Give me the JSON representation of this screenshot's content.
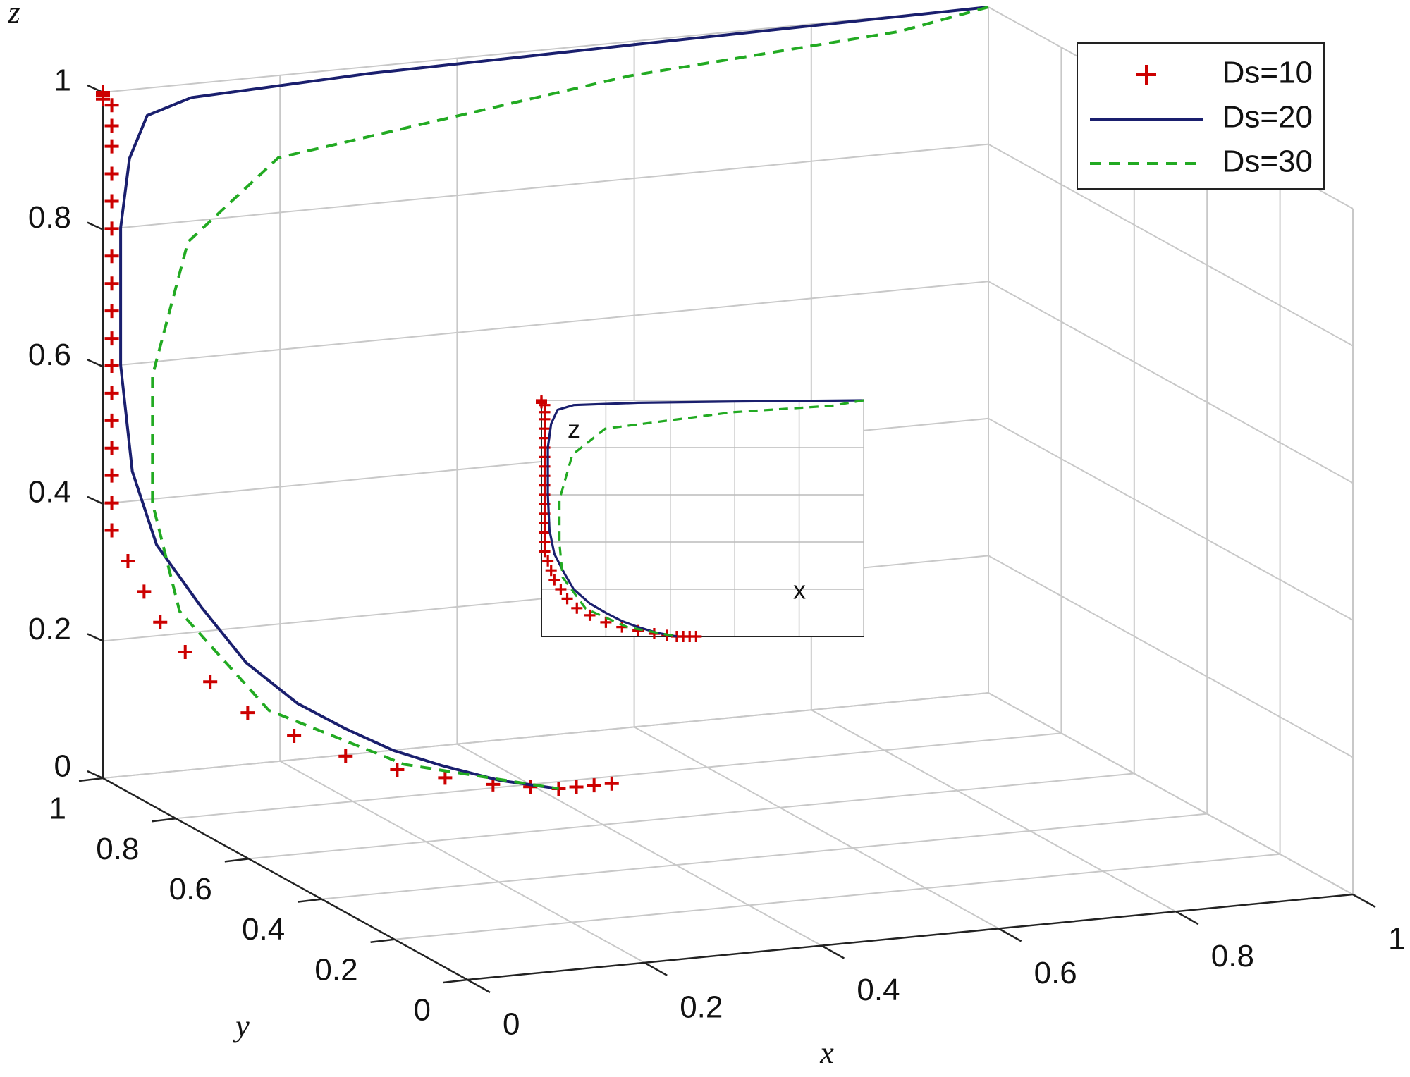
{
  "chart_data": {
    "type": "line3d",
    "xlabel": "x",
    "ylabel": "y",
    "zlabel": "z",
    "xlim": [
      0,
      1
    ],
    "ylim": [
      0,
      1
    ],
    "zlim": [
      0,
      1
    ],
    "xticks": [
      0,
      0.2,
      0.4,
      0.6,
      0.8,
      1
    ],
    "yticks": [
      0,
      0.2,
      0.4,
      0.6,
      0.8,
      1
    ],
    "zticks": [
      0,
      0.2,
      0.4,
      0.6,
      0.8,
      1
    ],
    "grid": true,
    "legend": "top-right",
    "series": [
      {
        "name": "Ds=10",
        "color": "#cc0000",
        "marker": "+",
        "linestyle": "none",
        "x": [
          0,
          0,
          0,
          0.01,
          0.01,
          0.01,
          0.01,
          0.01,
          0.01,
          0.01,
          0.01,
          0.01,
          0.01,
          0.01,
          0.01,
          0.01,
          0.01,
          0.01,
          0.01,
          0.01,
          0.02,
          0.03,
          0.04,
          0.06,
          0.08,
          0.11,
          0.15,
          0.2,
          0.25,
          0.3,
          0.35,
          0.39,
          0.42,
          0.44,
          0.46,
          0.48
        ],
        "y": [
          1,
          1,
          1,
          1,
          1,
          1,
          1,
          1,
          1,
          1,
          1,
          1,
          1,
          1,
          1,
          1,
          1,
          1,
          1,
          1,
          0.98,
          0.96,
          0.94,
          0.92,
          0.9,
          0.87,
          0.84,
          0.82,
          0.8,
          0.79,
          0.78,
          0.775,
          0.77,
          0.77,
          0.77,
          0.77
        ],
        "z": [
          1,
          0.995,
          0.99,
          0.98,
          0.95,
          0.92,
          0.88,
          0.84,
          0.8,
          0.76,
          0.72,
          0.68,
          0.64,
          0.6,
          0.56,
          0.52,
          0.48,
          0.44,
          0.4,
          0.36,
          0.32,
          0.28,
          0.24,
          0.2,
          0.16,
          0.12,
          0.09,
          0.06,
          0.04,
          0.025,
          0.012,
          0.005,
          0,
          0,
          0,
          0
        ]
      },
      {
        "name": "Ds=20",
        "color": "#1a1f6e",
        "marker": "none",
        "linestyle": "solid",
        "x": [
          1,
          0.6,
          0.3,
          0.1,
          0.05,
          0.03,
          0.02,
          0.02,
          0.025,
          0.04,
          0.07,
          0.1,
          0.15,
          0.2,
          0.25,
          0.3,
          0.36,
          0.42
        ],
        "y": [
          1,
          1,
          1,
          1,
          1,
          1,
          1,
          1,
          0.98,
          0.95,
          0.9,
          0.85,
          0.83,
          0.82,
          0.81,
          0.8,
          0.785,
          0.77
        ],
        "z": [
          1,
          0.995,
          0.99,
          0.98,
          0.96,
          0.9,
          0.8,
          0.6,
          0.45,
          0.35,
          0.27,
          0.2,
          0.14,
          0.1,
          0.065,
          0.04,
          0.015,
          0
        ]
      },
      {
        "name": "Ds=30",
        "color": "#22aa22",
        "marker": "none",
        "linestyle": "dashed",
        "x": [
          1,
          0.9,
          0.594,
          0.198,
          0.096,
          0.056,
          0.056,
          0.066,
          0.138,
          0.266,
          0.42
        ],
        "y": [
          1,
          1,
          1,
          1,
          1,
          1,
          1,
          0.95,
          0.88,
          0.82,
          0.77
        ],
        "z": [
          1,
          0.977,
          0.95,
          0.88,
          0.77,
          0.58,
          0.394,
          0.25,
          0.117,
          0.04,
          0
        ]
      }
    ],
    "inset": {
      "xlabel": "x",
      "ylabel": "z"
    }
  }
}
